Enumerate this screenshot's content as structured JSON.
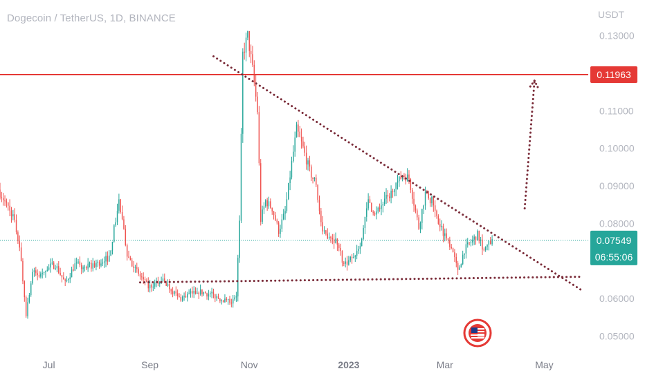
{
  "header": {
    "symbol_title": "Dogecoin / TetherUS, 1D, BINANCE"
  },
  "colors": {
    "up": "#26a69a",
    "down": "#ef5350",
    "level": "#e53935",
    "trend": "#7b2d3a",
    "last_price": "#26a69a",
    "axis_text": "#b2b5be"
  },
  "chart_data": {
    "type": "candlestick",
    "y_axis": {
      "unit_label": "USDT",
      "ticks": [
        0.13,
        0.11,
        0.1,
        0.09,
        0.08,
        0.06,
        0.05
      ],
      "tick_labels": [
        "0.13000",
        "0.11000",
        "0.10000",
        "0.09000",
        "0.08000",
        "0.06000",
        "0.05000"
      ],
      "range": [
        0.0475,
        0.1395
      ]
    },
    "x_axis": {
      "range": [
        "2022-06-01",
        "2023-05-28"
      ],
      "ticks": [
        {
          "date": "2022-07-01",
          "label": "Jul"
        },
        {
          "date": "2022-09-01",
          "label": "Sep"
        },
        {
          "date": "2022-11-01",
          "label": "Nov"
        },
        {
          "date": "2023-01-01",
          "label": "2023"
        },
        {
          "date": "2023-03-01",
          "label": "Mar"
        },
        {
          "date": "2023-05-01",
          "label": "May"
        }
      ]
    },
    "price_anchors": [
      [
        "2022-06-01",
        0.089
      ],
      [
        "2022-06-06",
        0.085
      ],
      [
        "2022-06-10",
        0.082
      ],
      [
        "2022-06-14",
        0.074
      ],
      [
        "2022-06-18",
        0.056
      ],
      [
        "2022-06-22",
        0.067
      ],
      [
        "2022-06-26",
        0.066
      ],
      [
        "2022-06-30",
        0.068
      ],
      [
        "2022-07-06",
        0.069
      ],
      [
        "2022-07-12",
        0.064
      ],
      [
        "2022-07-18",
        0.069
      ],
      [
        "2022-07-24",
        0.068
      ],
      [
        "2022-07-30",
        0.069
      ],
      [
        "2022-08-08",
        0.071
      ],
      [
        "2022-08-14",
        0.086
      ],
      [
        "2022-08-19",
        0.072
      ],
      [
        "2022-08-25",
        0.067
      ],
      [
        "2022-09-01",
        0.063
      ],
      [
        "2022-09-10",
        0.065
      ],
      [
        "2022-09-20",
        0.06
      ],
      [
        "2022-10-01",
        0.062
      ],
      [
        "2022-10-10",
        0.061
      ],
      [
        "2022-10-20",
        0.059
      ],
      [
        "2022-10-25",
        0.061
      ],
      [
        "2022-10-27",
        0.08
      ],
      [
        "2022-10-29",
        0.125
      ],
      [
        "2022-11-01",
        0.13
      ],
      [
        "2022-11-04",
        0.121
      ],
      [
        "2022-11-07",
        0.11
      ],
      [
        "2022-11-09",
        0.081
      ],
      [
        "2022-11-12",
        0.086
      ],
      [
        "2022-11-16",
        0.084
      ],
      [
        "2022-11-20",
        0.078
      ],
      [
        "2022-11-24",
        0.083
      ],
      [
        "2022-11-28",
        0.096
      ],
      [
        "2022-12-01",
        0.105
      ],
      [
        "2022-12-05",
        0.1
      ],
      [
        "2022-12-09",
        0.094
      ],
      [
        "2022-12-13",
        0.09
      ],
      [
        "2022-12-17",
        0.077
      ],
      [
        "2022-12-21",
        0.077
      ],
      [
        "2022-12-26",
        0.075
      ],
      [
        "2022-12-30",
        0.069
      ],
      [
        "2023-01-05",
        0.071
      ],
      [
        "2023-01-10",
        0.076
      ],
      [
        "2023-01-14",
        0.086
      ],
      [
        "2023-01-18",
        0.082
      ],
      [
        "2023-01-24",
        0.086
      ],
      [
        "2023-01-30",
        0.089
      ],
      [
        "2023-02-04",
        0.093
      ],
      [
        "2023-02-08",
        0.092
      ],
      [
        "2023-02-14",
        0.079
      ],
      [
        "2023-02-18",
        0.088
      ],
      [
        "2023-02-22",
        0.086
      ],
      [
        "2023-02-26",
        0.08
      ],
      [
        "2023-03-02",
        0.077
      ],
      [
        "2023-03-06",
        0.074
      ],
      [
        "2023-03-10",
        0.067
      ],
      [
        "2023-03-14",
        0.073
      ],
      [
        "2023-03-18",
        0.075
      ],
      [
        "2023-03-22",
        0.077
      ],
      [
        "2023-03-26",
        0.073
      ],
      [
        "2023-03-30",
        0.075
      ]
    ],
    "horizontal_level": {
      "price": 0.11963,
      "label": "0.11963"
    },
    "last_price": {
      "price": 0.07549,
      "label": "0.07549",
      "countdown": "06:55:06"
    },
    "trendlines": [
      {
        "name": "descending-resistance",
        "from": [
          "2022-10-10",
          0.1245
        ],
        "to": [
          "2023-05-24",
          0.0622
        ]
      },
      {
        "name": "horizontal-support",
        "from": [
          "2022-08-26",
          0.0643
        ],
        "to": [
          "2023-05-24",
          0.0658
        ]
      }
    ],
    "projection_arrow": {
      "from": [
        "2023-04-19",
        0.084
      ],
      "to": [
        "2023-04-25",
        0.118
      ]
    },
    "logo": {
      "label": "chart-author-logo"
    }
  }
}
